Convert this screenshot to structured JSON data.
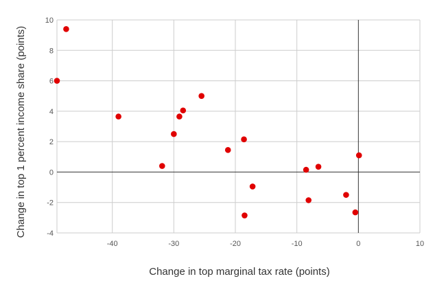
{
  "chart_data": {
    "type": "scatter",
    "title": "",
    "xlabel": "Change in top marginal tax rate (points)",
    "ylabel": "Change in top 1 percent income share (points)",
    "xlim": [
      -49,
      10
    ],
    "ylim": [
      -4,
      10
    ],
    "x_ticks": [
      "-40",
      "-30",
      "-20",
      "-10",
      "0",
      "10"
    ],
    "y_ticks": [
      "10",
      "8",
      "6",
      "4",
      "2",
      "0",
      "-2",
      "-4"
    ],
    "grid": true,
    "legend": "none",
    "point_color": "#e00000",
    "points": [
      {
        "x": -47.5,
        "y": 9.4
      },
      {
        "x": -49.0,
        "y": 6.0
      },
      {
        "x": -39.0,
        "y": 3.65
      },
      {
        "x": -31.9,
        "y": 0.4
      },
      {
        "x": -30.0,
        "y": 2.5
      },
      {
        "x": -29.1,
        "y": 3.65
      },
      {
        "x": -28.5,
        "y": 4.05
      },
      {
        "x": -25.5,
        "y": 5.0
      },
      {
        "x": -21.2,
        "y": 1.45
      },
      {
        "x": -18.6,
        "y": 2.15
      },
      {
        "x": -18.5,
        "y": -2.85
      },
      {
        "x": -17.2,
        "y": -0.95
      },
      {
        "x": -8.5,
        "y": 0.15
      },
      {
        "x": -8.1,
        "y": -1.85
      },
      {
        "x": -6.5,
        "y": 0.35
      },
      {
        "x": -2.0,
        "y": -1.5
      },
      {
        "x": -0.5,
        "y": -2.65
      },
      {
        "x": 0.1,
        "y": 1.1
      }
    ]
  }
}
